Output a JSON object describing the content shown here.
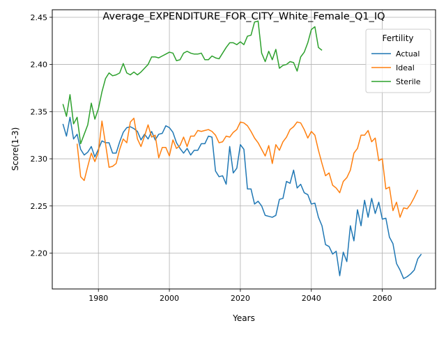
{
  "chart_data": {
    "type": "line",
    "title": "Average_EXPENDITURE_FOR_CITY_White_Female_Q1_IQ",
    "xlabel": "Years",
    "ylabel": "Score(1-3)",
    "xlim": [
      1967,
      2075
    ],
    "ylim": [
      2.162,
      2.458
    ],
    "xticks": [
      1980,
      2000,
      2020,
      2040,
      2060
    ],
    "yticks": [
      2.2,
      2.25,
      2.3,
      2.35,
      2.4,
      2.45
    ],
    "grid": true,
    "legend": {
      "title": "Fertility",
      "location": "top-right"
    },
    "series": [
      {
        "name": "Actual",
        "color": "#1f77b4",
        "x_start": 1970,
        "values": [
          2.337,
          2.324,
          2.344,
          2.321,
          2.326,
          2.31,
          2.304,
          2.307,
          2.313,
          2.302,
          2.31,
          2.319,
          2.317,
          2.317,
          2.306,
          2.306,
          2.318,
          2.328,
          2.333,
          2.334,
          2.332,
          2.329,
          2.32,
          2.326,
          2.321,
          2.329,
          2.32,
          2.326,
          2.327,
          2.335,
          2.333,
          2.328,
          2.317,
          2.311,
          2.306,
          2.311,
          2.304,
          2.309,
          2.309,
          2.316,
          2.316,
          2.324,
          2.323,
          2.287,
          2.281,
          2.282,
          2.273,
          2.313,
          2.285,
          2.29,
          2.315,
          2.31,
          2.268,
          2.268,
          2.252,
          2.255,
          2.25,
          2.24,
          2.239,
          2.238,
          2.24,
          2.257,
          2.258,
          2.276,
          2.274,
          2.288,
          2.269,
          2.273,
          2.264,
          2.262,
          2.252,
          2.253,
          2.238,
          2.229,
          2.209,
          2.207,
          2.199,
          2.202,
          2.176,
          2.201,
          2.191,
          2.229,
          2.213,
          2.246,
          2.229,
          2.256,
          2.238,
          2.258,
          2.242,
          2.254,
          2.236,
          2.237,
          2.217,
          2.21,
          2.189,
          2.182,
          2.173,
          2.175,
          2.178,
          2.182,
          2.194,
          2.199
        ]
      },
      {
        "name": "Ideal",
        "color": "#ff7f0e",
        "x_start": 1974,
        "values": [
          2.316,
          2.281,
          2.277,
          2.292,
          2.306,
          2.297,
          2.307,
          2.34,
          2.316,
          2.291,
          2.292,
          2.295,
          2.31,
          2.321,
          2.317,
          2.339,
          2.343,
          2.321,
          2.313,
          2.324,
          2.336,
          2.323,
          2.325,
          2.301,
          2.312,
          2.312,
          2.303,
          2.32,
          2.311,
          2.314,
          2.323,
          2.313,
          2.324,
          2.324,
          2.33,
          2.329,
          2.33,
          2.331,
          2.329,
          2.325,
          2.317,
          2.318,
          2.324,
          2.323,
          2.328,
          2.331,
          2.339,
          2.338,
          2.335,
          2.329,
          2.322,
          2.317,
          2.31,
          2.303,
          2.314,
          2.295,
          2.315,
          2.309,
          2.318,
          2.323,
          2.331,
          2.334,
          2.339,
          2.338,
          2.331,
          2.322,
          2.329,
          2.325,
          2.309,
          2.295,
          2.282,
          2.285,
          2.272,
          2.269,
          2.264,
          2.276,
          2.28,
          2.288,
          2.306,
          2.311,
          2.325,
          2.325,
          2.33,
          2.318,
          2.322,
          2.298,
          2.3,
          2.268,
          2.27,
          2.245,
          2.254,
          2.238,
          2.248,
          2.247,
          2.252,
          2.259,
          2.267
        ]
      },
      {
        "name": "Sterile",
        "color": "#2ca02c",
        "x_start": 1970,
        "values": [
          2.358,
          2.345,
          2.368,
          2.337,
          2.344,
          2.316,
          2.326,
          2.336,
          2.359,
          2.342,
          2.353,
          2.371,
          2.385,
          2.391,
          2.388,
          2.389,
          2.391,
          2.401,
          2.391,
          2.389,
          2.392,
          2.389,
          2.392,
          2.396,
          2.4,
          2.408,
          2.408,
          2.407,
          2.409,
          2.411,
          2.413,
          2.412,
          2.404,
          2.405,
          2.412,
          2.414,
          2.412,
          2.411,
          2.411,
          2.412,
          2.405,
          2.405,
          2.409,
          2.407,
          2.406,
          2.412,
          2.418,
          2.423,
          2.423,
          2.421,
          2.424,
          2.421,
          2.43,
          2.431,
          2.445,
          2.446,
          2.412,
          2.403,
          2.414,
          2.405,
          2.416,
          2.396,
          2.399,
          2.4,
          2.403,
          2.402,
          2.393,
          2.408,
          2.413,
          2.423,
          2.437,
          2.44,
          2.418,
          2.415
        ]
      }
    ]
  }
}
